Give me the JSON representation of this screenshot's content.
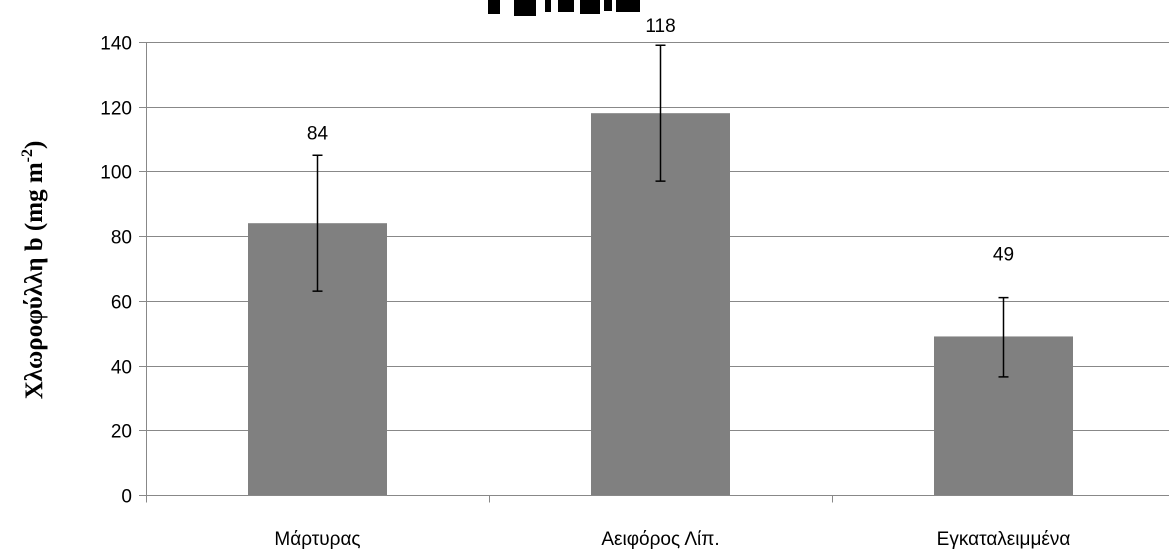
{
  "chart_data": {
    "type": "bar",
    "categories": [
      "Μάρτυρας",
      "Αειφόρος Λίπ.",
      "Εγκαταλειμμένα"
    ],
    "values": [
      84,
      118,
      49
    ],
    "error_bars": [
      {
        "low": 63,
        "high": 105
      },
      {
        "low": 97,
        "high": 139
      },
      {
        "low": 36.5,
        "high": 61
      }
    ],
    "data_labels": [
      "84",
      "118",
      "49"
    ],
    "ylabel_parts": [
      "Χλωροφύλλη b (mg m",
      "-2",
      ")"
    ],
    "ylim": [
      0,
      140
    ],
    "yticks": [
      0,
      20,
      40,
      60,
      80,
      100,
      120,
      140
    ],
    "ytick_labels": [
      "0",
      "20",
      "40",
      "60",
      "80",
      "100",
      "120",
      "140"
    ],
    "grid": true,
    "bar_color": "#808080",
    "grid_color": "#888888"
  }
}
